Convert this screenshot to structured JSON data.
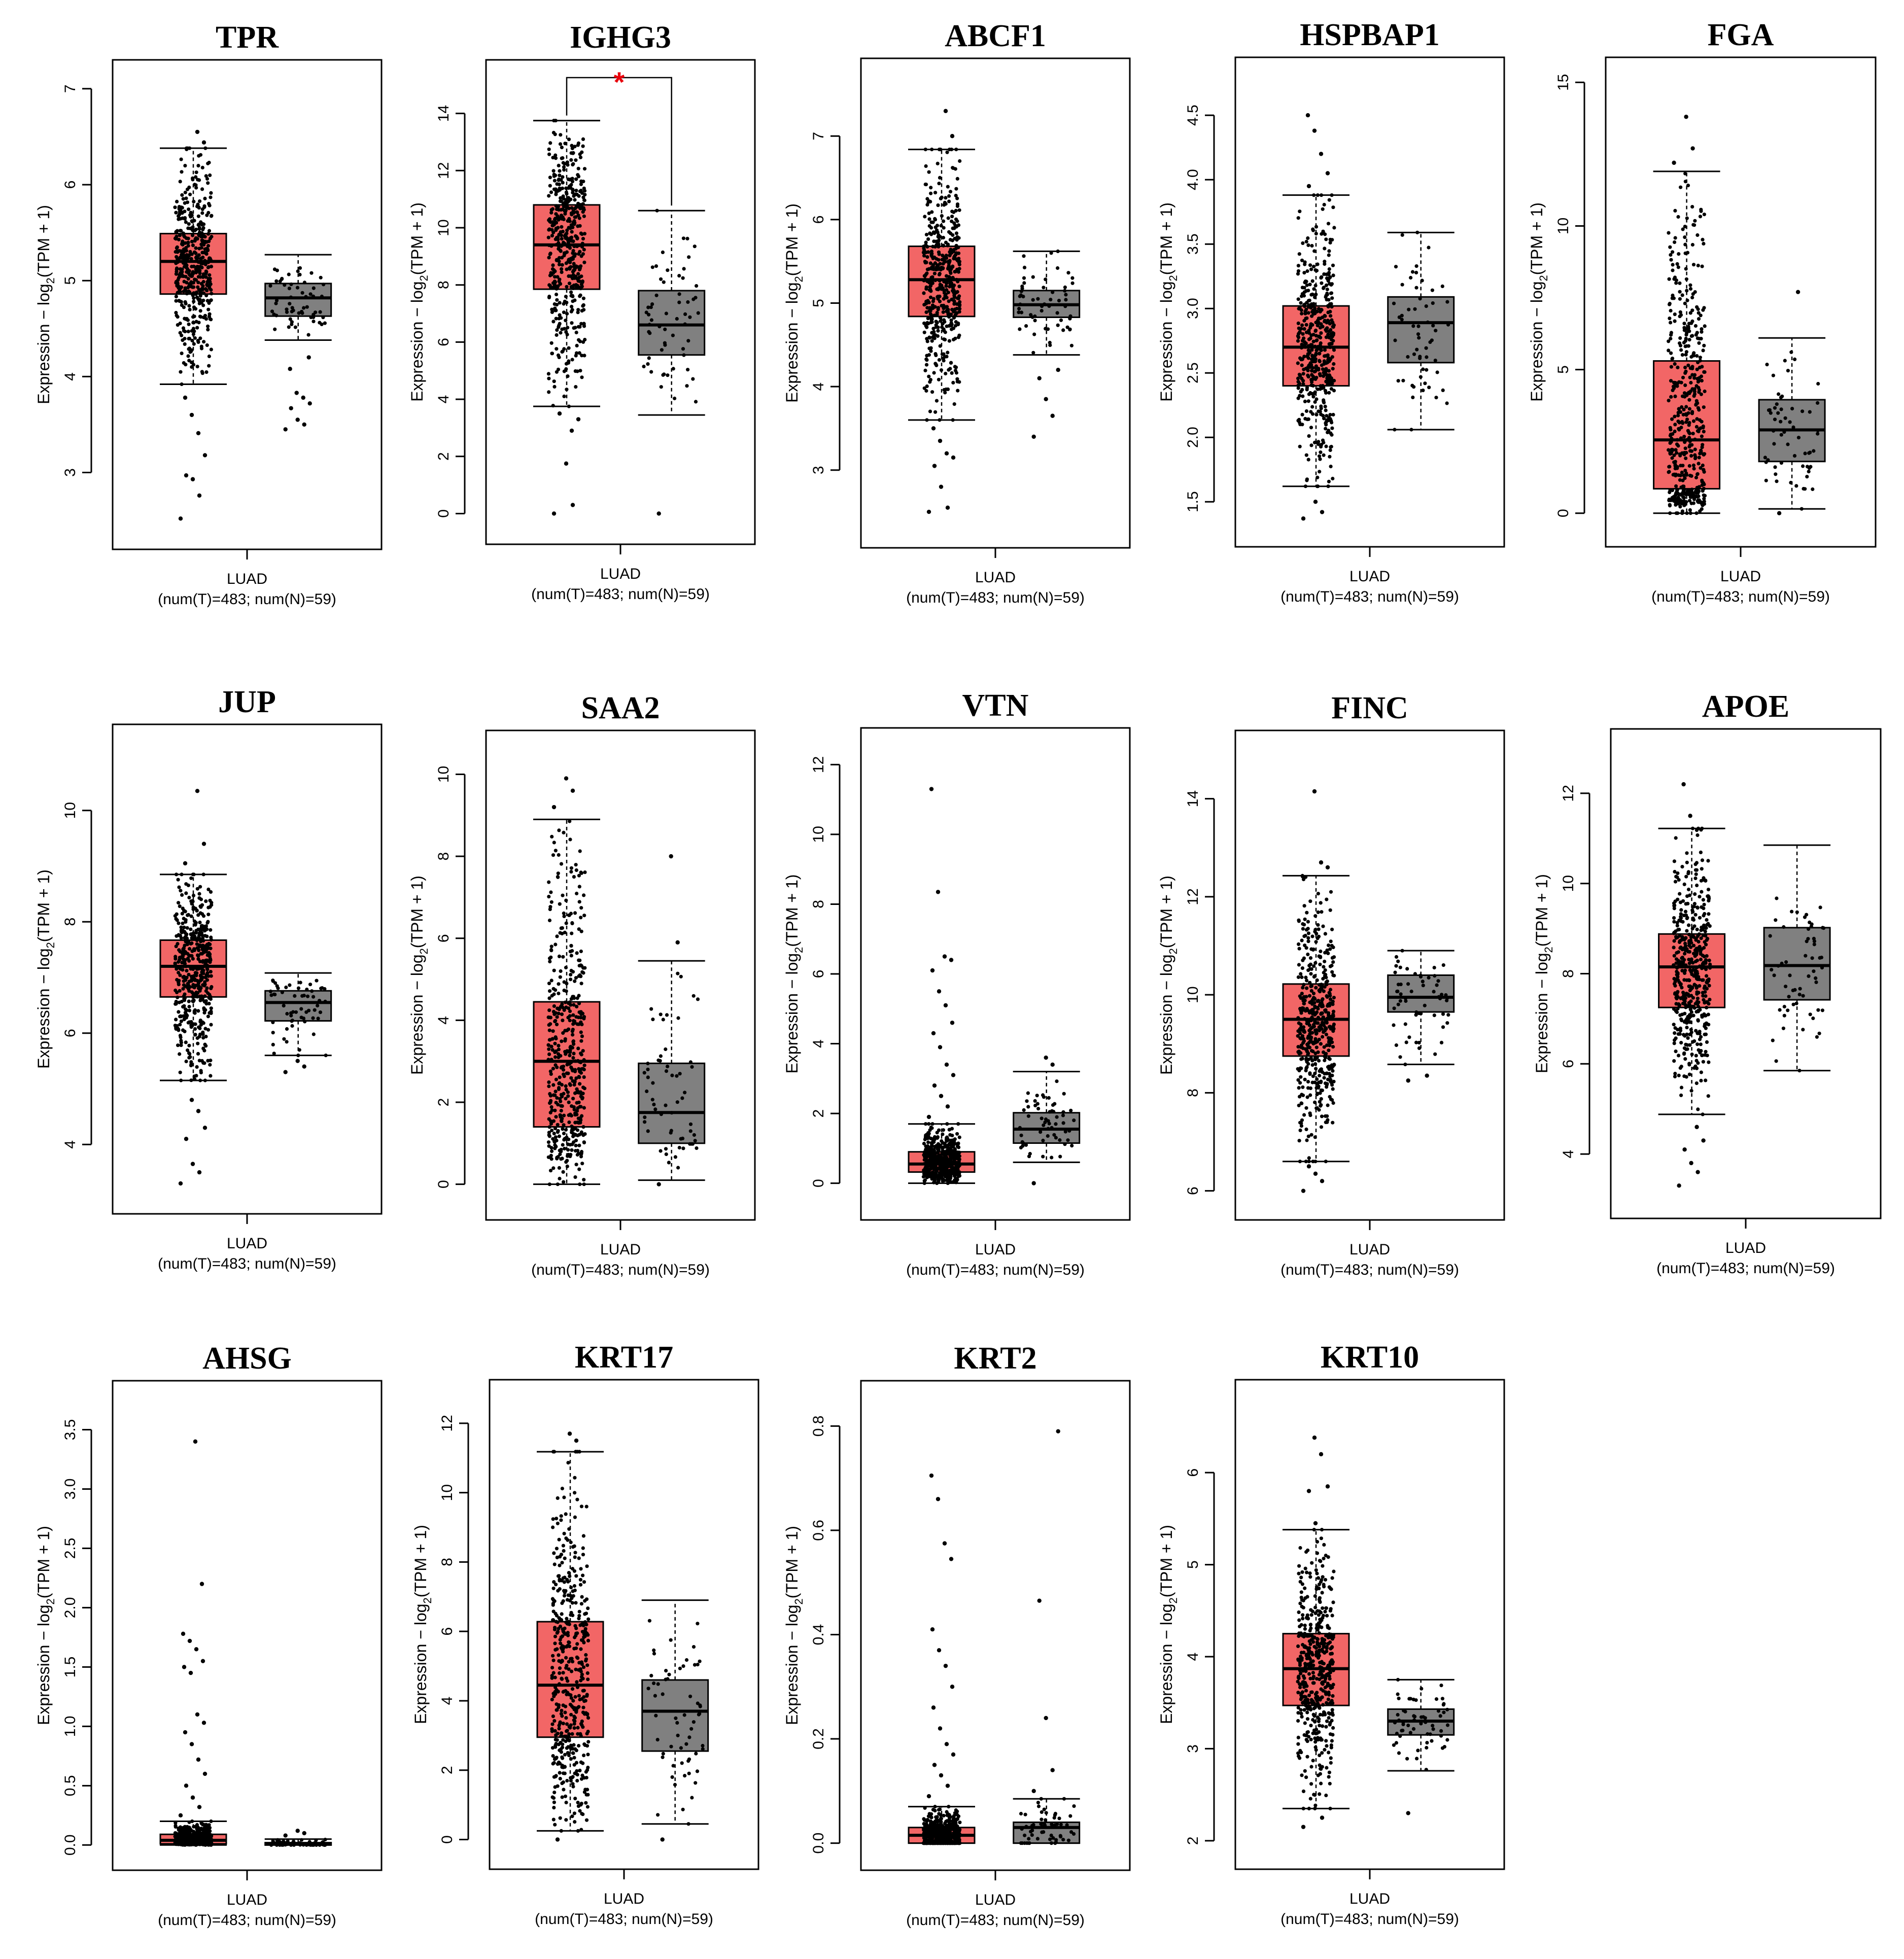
{
  "colors": {
    "tumor": "#f26666",
    "normal": "#808080",
    "point": "#000000",
    "significance": "#e8000b"
  },
  "chart_data": [
    {
      "type": "box",
      "title": "TPR",
      "ylabel": "Expression − log2(TPM + 1)",
      "ylim": [
        2.4,
        7.1
      ],
      "yticks": [
        3,
        4,
        5,
        6,
        7
      ],
      "xlabel": "LUAD",
      "counts_label": "(num(T)=483; num(N)=59)",
      "groups": [
        {
          "name": "T",
          "min": 3.92,
          "q1": 4.86,
          "median": 5.2,
          "q3": 5.49,
          "max": 6.38,
          "outliers": [
            2.52,
            2.76,
            2.93,
            2.97,
            3.18,
            3.41,
            3.6,
            3.78,
            6.44,
            6.55
          ]
        },
        {
          "name": "N",
          "min": 4.38,
          "q1": 4.63,
          "median": 4.82,
          "q3": 4.97,
          "max": 5.27,
          "outliers": [
            3.45,
            3.5,
            3.55,
            3.67,
            3.72,
            3.78,
            3.83,
            4.08,
            4.2
          ]
        }
      ],
      "significant": false
    },
    {
      "type": "box",
      "title": "IGHG3",
      "ylabel": "Expression − log2(TPM + 1)",
      "ylim": [
        -0.4,
        15.2
      ],
      "yticks": [
        0,
        2,
        4,
        6,
        8,
        10,
        12,
        14
      ],
      "xlabel": "LUAD",
      "counts_label": "(num(T)=483; num(N)=59)",
      "groups": [
        {
          "name": "T",
          "min": 3.75,
          "q1": 7.85,
          "median": 9.4,
          "q3": 10.8,
          "max": 13.75,
          "outliers": [
            0.0,
            0.3,
            1.75,
            3.5,
            3.3,
            2.9
          ]
        },
        {
          "name": "N",
          "min": 3.45,
          "q1": 5.55,
          "median": 6.6,
          "q3": 7.8,
          "max": 10.6,
          "outliers": [
            0.0
          ]
        }
      ],
      "significant": true,
      "significance_label": "*"
    },
    {
      "type": "box",
      "title": "ABCF1",
      "ylabel": "Expression − log2(TPM + 1)",
      "ylim": [
        2.3,
        7.7
      ],
      "yticks": [
        3,
        4,
        5,
        6,
        7
      ],
      "xlabel": "LUAD",
      "counts_label": "(num(T)=483; num(N)=59)",
      "groups": [
        {
          "name": "T",
          "min": 3.6,
          "q1": 4.84,
          "median": 5.28,
          "q3": 5.68,
          "max": 6.84,
          "outliers": [
            2.5,
            2.55,
            2.8,
            3.05,
            3.15,
            3.2,
            3.35,
            3.5,
            7.0,
            7.3
          ]
        },
        {
          "name": "N",
          "min": 4.38,
          "q1": 4.83,
          "median": 4.98,
          "q3": 5.15,
          "max": 5.62,
          "outliers": [
            3.4,
            3.65,
            3.85,
            4.1,
            4.2
          ]
        }
      ],
      "significant": false
    },
    {
      "type": "box",
      "title": "HSPBAP1",
      "ylabel": "Expression − log2(TPM + 1)",
      "ylim": [
        1.3,
        4.8
      ],
      "yticks": [
        1.5,
        2.0,
        2.5,
        3.0,
        3.5,
        4.0,
        4.5
      ],
      "tick_decimals": 1,
      "xlabel": "LUAD",
      "counts_label": "(num(T)=483; num(N)=59)",
      "groups": [
        {
          "name": "T",
          "min": 1.62,
          "q1": 2.4,
          "median": 2.7,
          "q3": 3.02,
          "max": 3.88,
          "outliers": [
            1.37,
            1.42,
            1.5,
            3.95,
            4.05,
            4.2,
            4.38,
            4.5
          ]
        },
        {
          "name": "N",
          "min": 2.06,
          "q1": 2.58,
          "median": 2.89,
          "q3": 3.09,
          "max": 3.59,
          "outliers": []
        }
      ],
      "significant": false
    },
    {
      "type": "box",
      "title": "FGA",
      "ylabel": "Expression − log2(TPM + 1)",
      "ylim": [
        -0.5,
        15.2
      ],
      "yticks": [
        0,
        5,
        10,
        15
      ],
      "xlabel": "LUAD",
      "counts_label": "(num(T)=483; num(N)=59)",
      "groups": [
        {
          "name": "T",
          "min": 0.0,
          "q1": 0.85,
          "median": 2.55,
          "q3": 5.3,
          "max": 11.9,
          "outliers": [
            12.2,
            12.7,
            13.8
          ]
        },
        {
          "name": "N",
          "min": 0.15,
          "q1": 1.8,
          "median": 2.9,
          "q3": 3.95,
          "max": 6.1,
          "outliers": [
            0.0,
            7.7
          ]
        }
      ],
      "significant": false
    },
    {
      "type": "box",
      "title": "JUP",
      "ylabel": "Expression − log2(TPM + 1)",
      "ylim": [
        3.1,
        11.2
      ],
      "yticks": [
        4,
        6,
        8,
        10
      ],
      "xlabel": "LUAD",
      "counts_label": "(num(T)=483; num(N)=59)",
      "groups": [
        {
          "name": "T",
          "min": 5.15,
          "q1": 6.65,
          "median": 7.2,
          "q3": 7.67,
          "max": 8.85,
          "outliers": [
            3.3,
            3.5,
            3.65,
            4.1,
            4.3,
            4.6,
            4.8,
            9.05,
            9.4,
            10.35
          ]
        },
        {
          "name": "N",
          "min": 5.6,
          "q1": 6.22,
          "median": 6.55,
          "q3": 6.76,
          "max": 7.08,
          "outliers": [
            5.3,
            5.4,
            5.5
          ]
        }
      ],
      "significant": false
    },
    {
      "type": "box",
      "title": "SAA2",
      "ylabel": "Expression − log2(TPM + 1)",
      "ylim": [
        -0.4,
        10.6
      ],
      "yticks": [
        0,
        2,
        4,
        6,
        8,
        10
      ],
      "xlabel": "LUAD",
      "counts_label": "(num(T)=483; num(N)=59)",
      "groups": [
        {
          "name": "T",
          "min": 0.0,
          "q1": 1.4,
          "median": 3.0,
          "q3": 4.45,
          "max": 8.9,
          "outliers": [
            9.2,
            9.6,
            9.9
          ]
        },
        {
          "name": "N",
          "min": 0.1,
          "q1": 1.0,
          "median": 1.75,
          "q3": 2.95,
          "max": 5.45,
          "outliers": [
            0.0,
            5.9,
            8.0
          ]
        }
      ],
      "significant": false
    },
    {
      "type": "box",
      "title": "VTN",
      "ylabel": "Expression − log2(TPM + 1)",
      "ylim": [
        -0.5,
        12.5
      ],
      "yticks": [
        0,
        2,
        4,
        6,
        8,
        10,
        12
      ],
      "xlabel": "LUAD",
      "counts_label": "(num(T)=483; num(N)=59)",
      "groups": [
        {
          "name": "T",
          "min": 0.0,
          "q1": 0.32,
          "median": 0.55,
          "q3": 0.9,
          "max": 1.7,
          "outliers": [
            1.9,
            2.2,
            2.5,
            2.8,
            3.1,
            3.4,
            3.9,
            4.3,
            4.6,
            5.1,
            5.5,
            6.1,
            6.4,
            6.5,
            8.35,
            11.3
          ]
        },
        {
          "name": "N",
          "min": 0.6,
          "q1": 1.15,
          "median": 1.55,
          "q3": 2.02,
          "max": 3.2,
          "outliers": [
            0.0,
            3.4,
            3.6
          ]
        }
      ],
      "significant": false
    },
    {
      "type": "box",
      "title": "FINC",
      "ylabel": "Expression − log2(TPM + 1)",
      "ylim": [
        5.8,
        15.0
      ],
      "yticks": [
        6,
        8,
        10,
        12,
        14
      ],
      "xlabel": "LUAD",
      "counts_label": "(num(T)=483; num(N)=59)",
      "groups": [
        {
          "name": "T",
          "min": 6.6,
          "q1": 8.75,
          "median": 9.5,
          "q3": 10.22,
          "max": 12.43,
          "outliers": [
            6.0,
            6.2,
            6.35,
            6.5,
            12.6,
            12.7,
            14.15
          ]
        },
        {
          "name": "N",
          "min": 8.58,
          "q1": 9.65,
          "median": 9.95,
          "q3": 10.4,
          "max": 10.9,
          "outliers": [
            8.25,
            8.35
          ]
        }
      ],
      "significant": false
    },
    {
      "type": "box",
      "title": "APOE",
      "ylabel": "Expression − log2(TPM + 1)",
      "ylim": [
        3.0,
        13.0
      ],
      "yticks": [
        4,
        6,
        8,
        10,
        12
      ],
      "xlabel": "LUAD",
      "counts_label": "(num(T)=483; num(N)=59)",
      "groups": [
        {
          "name": "T",
          "min": 4.88,
          "q1": 7.25,
          "median": 8.15,
          "q3": 8.88,
          "max": 11.22,
          "outliers": [
            3.3,
            3.6,
            3.8,
            4.1,
            4.3,
            4.6,
            11.5,
            12.2
          ]
        },
        {
          "name": "N",
          "min": 5.85,
          "q1": 7.42,
          "median": 8.18,
          "q3": 9.02,
          "max": 10.85,
          "outliers": []
        }
      ],
      "significant": false
    },
    {
      "type": "box",
      "title": "AHSG",
      "ylabel": "Expression − log2(TPM + 1)",
      "ylim": [
        -0.05,
        3.75
      ],
      "yticks": [
        0.0,
        0.5,
        1.0,
        1.5,
        2.0,
        2.5,
        3.0,
        3.5
      ],
      "tick_decimals": 1,
      "xlabel": "LUAD",
      "counts_label": "(num(T)=483; num(N)=59)",
      "groups": [
        {
          "name": "T",
          "min": 0.0,
          "q1": 0.01,
          "median": 0.04,
          "q3": 0.09,
          "max": 0.2,
          "outliers": [
            0.25,
            0.32,
            0.4,
            0.5,
            0.6,
            0.72,
            0.85,
            0.95,
            1.03,
            1.1,
            1.45,
            1.5,
            1.55,
            1.65,
            1.72,
            1.78,
            2.2,
            3.4
          ]
        },
        {
          "name": "N",
          "min": 0.0,
          "q1": 0.0,
          "median": 0.01,
          "q3": 0.02,
          "max": 0.05,
          "outliers": [
            0.08,
            0.1,
            0.12
          ]
        }
      ],
      "significant": false
    },
    {
      "type": "box",
      "title": "KRT17",
      "ylabel": "Expression − log2(TPM + 1)",
      "ylim": [
        -0.3,
        12.7
      ],
      "yticks": [
        0,
        2,
        4,
        6,
        8,
        10,
        12
      ],
      "xlabel": "LUAD",
      "counts_label": "(num(T)=483; num(N)=59)",
      "groups": [
        {
          "name": "T",
          "min": 0.25,
          "q1": 2.95,
          "median": 4.45,
          "q3": 6.28,
          "max": 11.18,
          "outliers": [
            0.0,
            11.5,
            11.7
          ]
        },
        {
          "name": "N",
          "min": 0.45,
          "q1": 2.55,
          "median": 3.7,
          "q3": 4.6,
          "max": 6.9,
          "outliers": [
            0.0
          ]
        }
      ],
      "significant": false
    },
    {
      "type": "box",
      "title": "KRT2",
      "ylabel": "Expression − log2(TPM + 1)",
      "ylim": [
        -0.015,
        0.85
      ],
      "yticks": [
        0.0,
        0.2,
        0.4,
        0.6,
        0.8
      ],
      "tick_decimals": 1,
      "xlabel": "LUAD",
      "counts_label": "(num(T)=483; num(N)=59)",
      "groups": [
        {
          "name": "T",
          "min": 0.0,
          "q1": 0.0,
          "median": 0.015,
          "q3": 0.03,
          "max": 0.07,
          "outliers": [
            0.09,
            0.11,
            0.13,
            0.15,
            0.17,
            0.19,
            0.22,
            0.26,
            0.3,
            0.34,
            0.37,
            0.41,
            0.545,
            0.575,
            0.66,
            0.705
          ]
        },
        {
          "name": "N",
          "min": 0.0,
          "q1": 0.0,
          "median": 0.03,
          "q3": 0.04,
          "max": 0.085,
          "outliers": [
            0.1,
            0.14,
            0.24,
            0.465,
            0.79
          ]
        }
      ],
      "significant": false
    },
    {
      "type": "box",
      "title": "KRT10",
      "ylabel": "Expression − log2(TPM + 1)",
      "ylim": [
        1.9,
        6.8
      ],
      "yticks": [
        2,
        3,
        4,
        5,
        6
      ],
      "xlabel": "LUAD",
      "counts_label": "(num(T)=483; num(N)=59)",
      "groups": [
        {
          "name": "T",
          "min": 2.35,
          "q1": 3.47,
          "median": 3.87,
          "q3": 4.25,
          "max": 5.38,
          "outliers": [
            2.15,
            2.25,
            5.45,
            5.8,
            5.85,
            6.2,
            6.38
          ]
        },
        {
          "name": "N",
          "min": 2.76,
          "q1": 3.15,
          "median": 3.3,
          "q3": 3.43,
          "max": 3.75,
          "outliers": [
            2.3
          ]
        }
      ],
      "significant": false
    }
  ]
}
